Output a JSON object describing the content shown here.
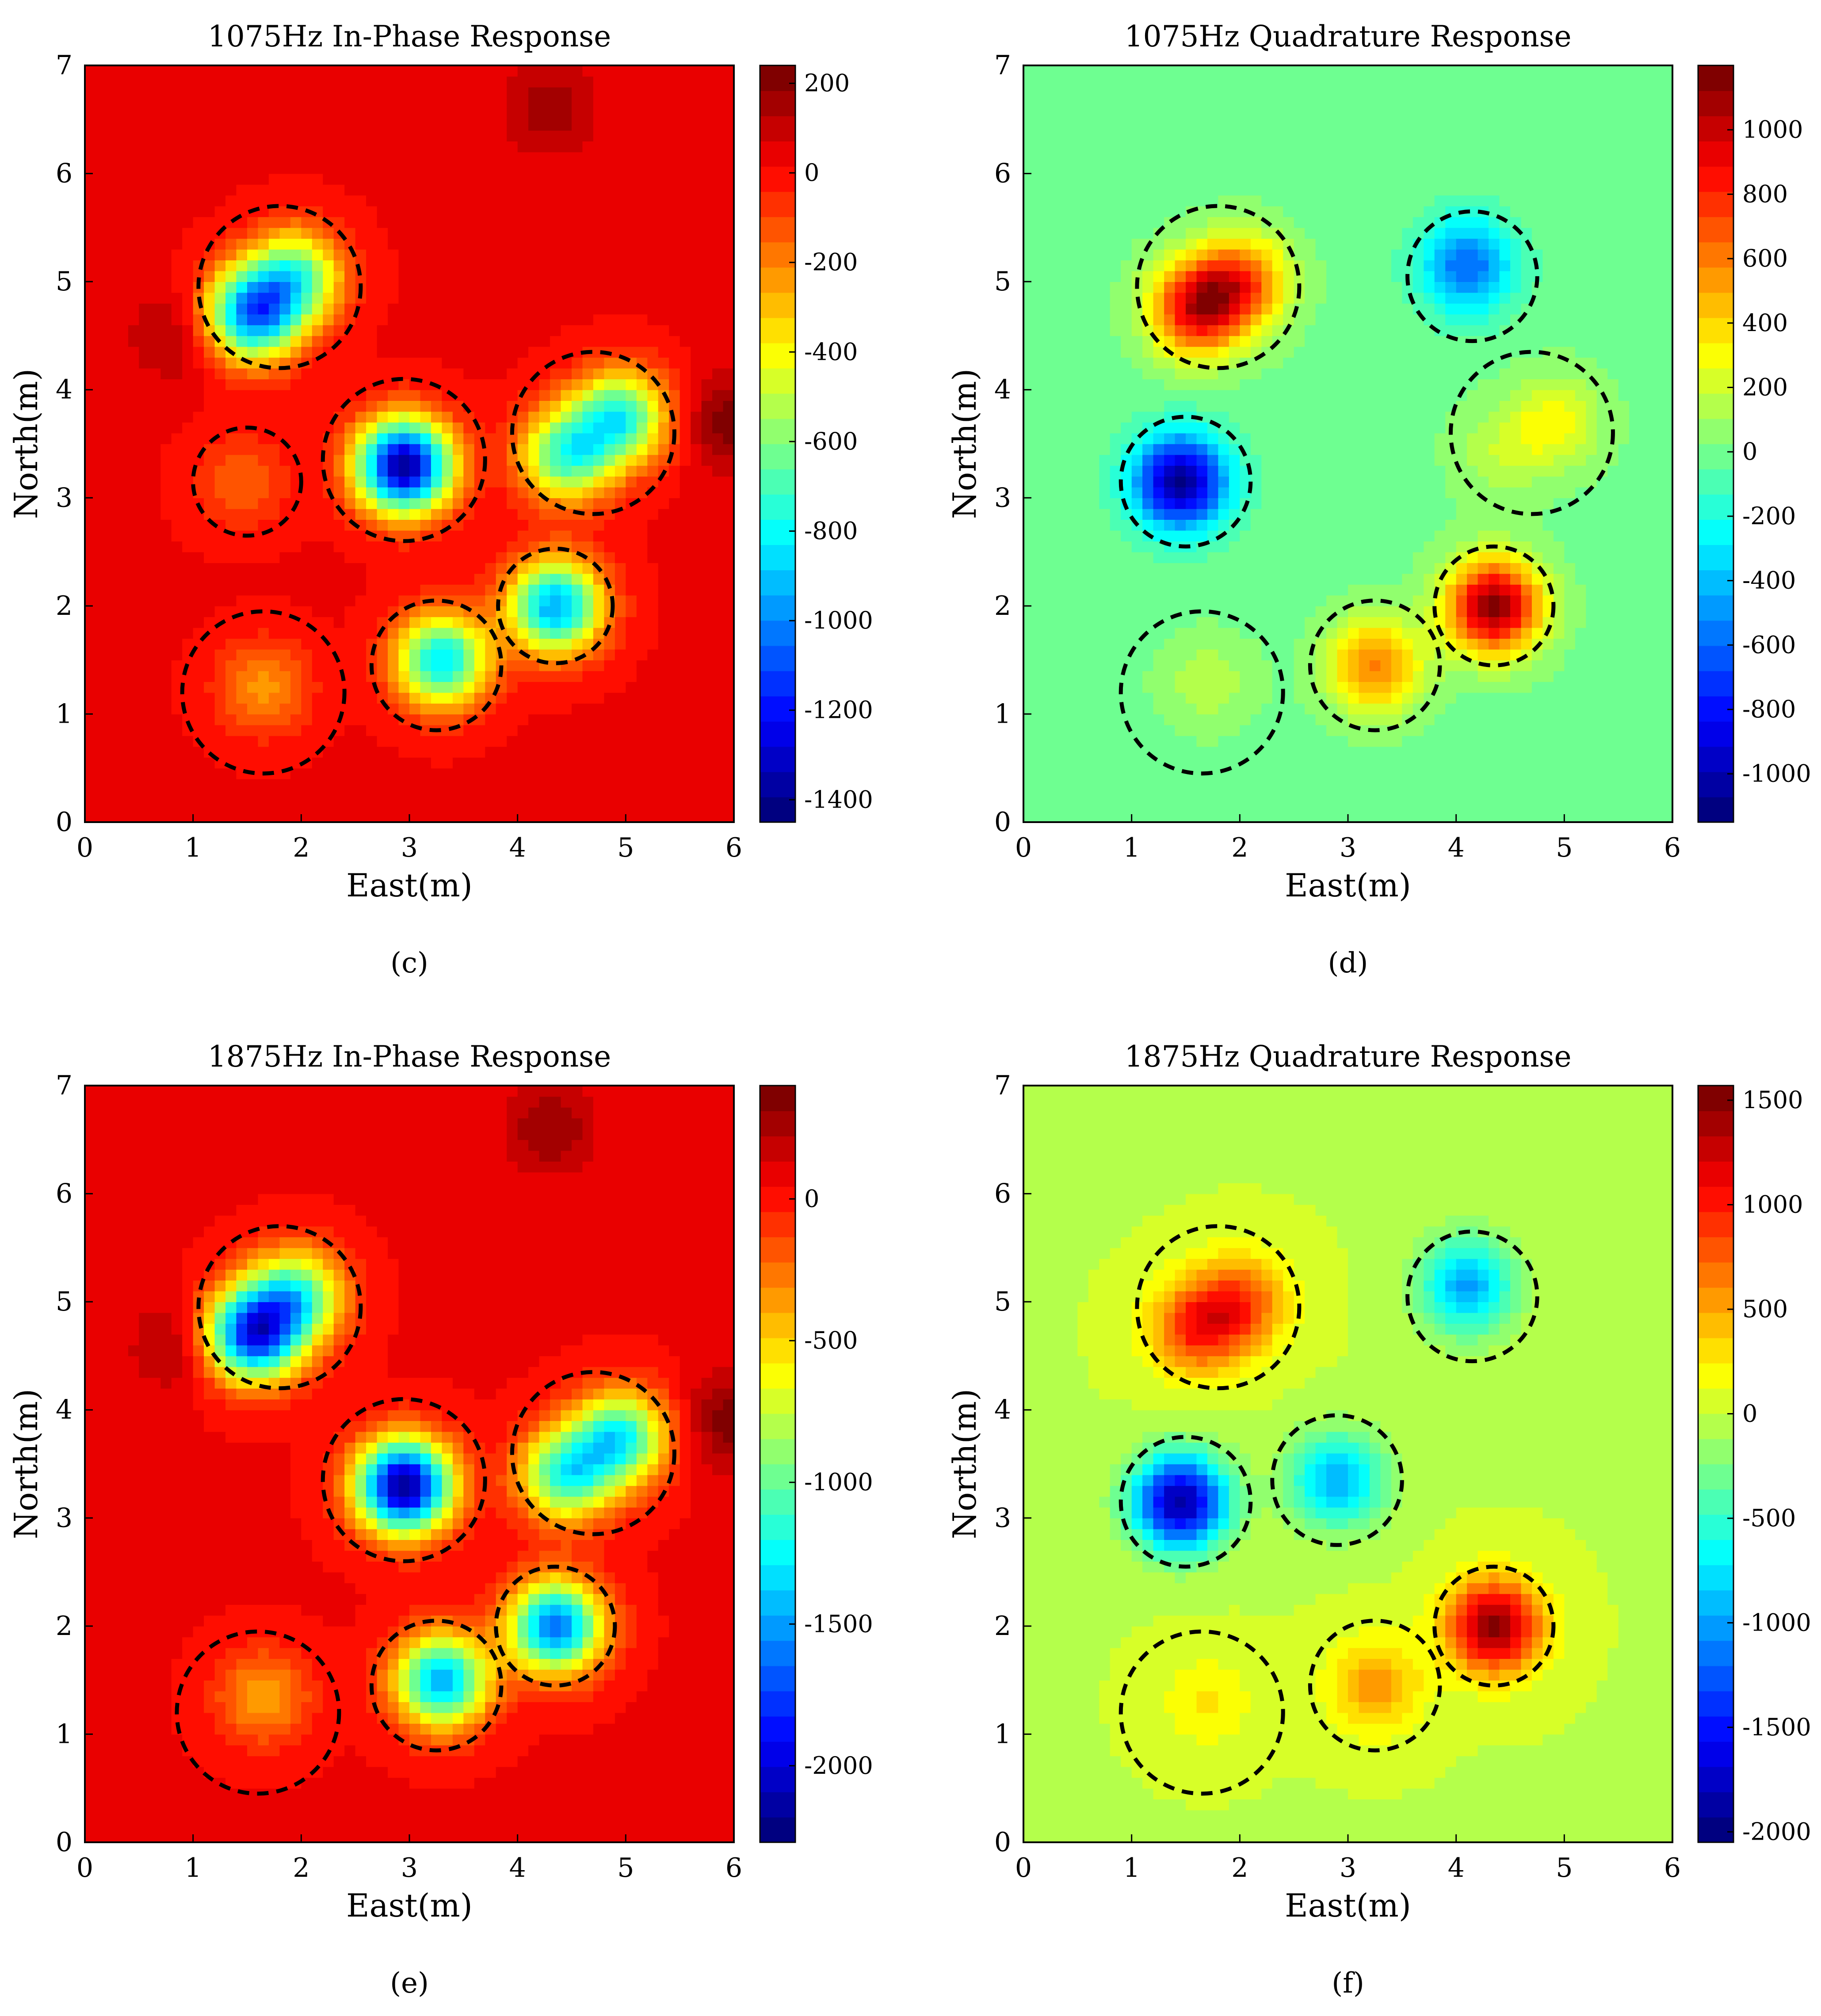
{
  "chart_data": [
    {
      "type": "heatmap",
      "title": "1075Hz In-Phase Response",
      "xlabel": "East(m)",
      "ylabel": "North(m)",
      "xlim": [
        0,
        6
      ],
      "ylim": [
        0,
        7
      ],
      "xticks": [
        "0",
        "1",
        "2",
        "3",
        "4",
        "5",
        "6"
      ],
      "yticks": [
        "0",
        "1",
        "2",
        "3",
        "4",
        "5",
        "6",
        "7"
      ],
      "colormap": "jet",
      "colorbar_range": [
        -1450,
        240
      ],
      "colorbar_ticks": [
        200,
        0,
        -200,
        -400,
        -600,
        -800,
        -1000,
        -1200,
        -1400
      ],
      "colorbar_tick_labels": [
        "200",
        "0",
        "-200",
        "-400",
        "-600",
        "-800",
        "-1000",
        "-1200",
        "-1400"
      ],
      "background_value": 20,
      "anomalies": [
        {
          "x": 1.55,
          "y": 4.7,
          "value": -1000
        },
        {
          "x": 1.95,
          "y": 5.05,
          "value": -650
        },
        {
          "x": 2.95,
          "y": 3.3,
          "value": -1400
        },
        {
          "x": 1.45,
          "y": 3.15,
          "value": -150
        },
        {
          "x": 4.45,
          "y": 3.4,
          "value": -700
        },
        {
          "x": 4.95,
          "y": 3.75,
          "value": -750
        },
        {
          "x": 4.35,
          "y": 2.0,
          "value": -950
        },
        {
          "x": 3.3,
          "y": 1.5,
          "value": -850
        },
        {
          "x": 1.65,
          "y": 1.25,
          "value": -230
        },
        {
          "x": 6.0,
          "y": 3.7,
          "value": 230
        },
        {
          "x": 4.3,
          "y": 6.6,
          "value": 170
        },
        {
          "x": 0.85,
          "y": 4.5,
          "value": 150
        }
      ],
      "target_circles": [
        {
          "x": 1.8,
          "y": 4.95,
          "r": 0.75
        },
        {
          "x": 1.5,
          "y": 3.15,
          "r": 0.5
        },
        {
          "x": 2.95,
          "y": 3.35,
          "r": 0.75
        },
        {
          "x": 4.7,
          "y": 3.6,
          "r": 0.75
        },
        {
          "x": 4.35,
          "y": 2.0,
          "r": 0.53
        },
        {
          "x": 3.25,
          "y": 1.45,
          "r": 0.6
        },
        {
          "x": 1.65,
          "y": 1.2,
          "r": 0.75
        }
      ],
      "panel_label": "(c)"
    },
    {
      "type": "heatmap",
      "title": "1075Hz Quadrature Response",
      "xlabel": "East(m)",
      "ylabel": "North(m)",
      "xlim": [
        0,
        6
      ],
      "ylim": [
        0,
        7
      ],
      "xticks": [
        "0",
        "1",
        "2",
        "3",
        "4",
        "5",
        "6"
      ],
      "yticks": [
        "0",
        "1",
        "2",
        "3",
        "4",
        "5",
        "6",
        "7"
      ],
      "colormap": "jet",
      "colorbar_range": [
        -1150,
        1200
      ],
      "colorbar_ticks": [
        1000,
        800,
        600,
        400,
        200,
        0,
        -200,
        -400,
        -600,
        -800,
        -1000
      ],
      "colorbar_tick_labels": [
        "1000",
        "800",
        "600",
        "400",
        "200",
        "0",
        "-200",
        "-400",
        "-600",
        "-800",
        "-1000"
      ],
      "background_value": 0,
      "anomalies": [
        {
          "x": 1.6,
          "y": 4.75,
          "value": 900
        },
        {
          "x": 2.0,
          "y": 5.0,
          "value": 700
        },
        {
          "x": 4.1,
          "y": 5.15,
          "value": -600
        },
        {
          "x": 1.45,
          "y": 3.15,
          "value": -1100
        },
        {
          "x": 4.9,
          "y": 3.7,
          "value": 300
        },
        {
          "x": 4.4,
          "y": 3.4,
          "value": 150
        },
        {
          "x": 4.35,
          "y": 2.0,
          "value": 1150
        },
        {
          "x": 3.25,
          "y": 1.45,
          "value": 600
        },
        {
          "x": 1.7,
          "y": 1.3,
          "value": 150
        }
      ],
      "target_circles": [
        {
          "x": 1.8,
          "y": 4.95,
          "r": 0.75
        },
        {
          "x": 4.15,
          "y": 5.05,
          "r": 0.6
        },
        {
          "x": 1.5,
          "y": 3.15,
          "r": 0.6
        },
        {
          "x": 4.7,
          "y": 3.6,
          "r": 0.75
        },
        {
          "x": 4.35,
          "y": 2.0,
          "r": 0.55
        },
        {
          "x": 3.25,
          "y": 1.45,
          "r": 0.6
        },
        {
          "x": 1.65,
          "y": 1.2,
          "r": 0.75
        }
      ],
      "panel_label": "(d)"
    },
    {
      "type": "heatmap",
      "title": "1875Hz In-Phase Response",
      "xlabel": "East(m)",
      "ylabel": "North(m)",
      "xlim": [
        0,
        6
      ],
      "ylim": [
        0,
        7
      ],
      "xticks": [
        "0",
        "1",
        "2",
        "3",
        "4",
        "5",
        "6"
      ],
      "yticks": [
        "0",
        "1",
        "2",
        "3",
        "4",
        "5",
        "6",
        "7"
      ],
      "colormap": "jet",
      "colorbar_range": [
        -2270,
        400
      ],
      "colorbar_ticks": [
        0,
        -500,
        -1000,
        -1500,
        -2000
      ],
      "colorbar_tick_labels": [
        "0",
        "-500",
        "-1000",
        "-1500",
        "-2000"
      ],
      "background_value": 50,
      "anomalies": [
        {
          "x": 1.55,
          "y": 4.7,
          "value": -1800
        },
        {
          "x": 1.95,
          "y": 5.05,
          "value": -1100
        },
        {
          "x": 2.95,
          "y": 3.3,
          "value": -2200
        },
        {
          "x": 4.45,
          "y": 3.4,
          "value": -1150
        },
        {
          "x": 4.95,
          "y": 3.75,
          "value": -1200
        },
        {
          "x": 4.35,
          "y": 2.0,
          "value": -1600
        },
        {
          "x": 3.3,
          "y": 1.5,
          "value": -1450
        },
        {
          "x": 1.65,
          "y": 1.35,
          "value": -400
        },
        {
          "x": 6.0,
          "y": 3.9,
          "value": 380
        },
        {
          "x": 4.3,
          "y": 6.6,
          "value": 300
        },
        {
          "x": 0.85,
          "y": 4.6,
          "value": 260
        }
      ],
      "target_circles": [
        {
          "x": 1.8,
          "y": 4.95,
          "r": 0.75
        },
        {
          "x": 2.95,
          "y": 3.35,
          "r": 0.75
        },
        {
          "x": 4.7,
          "y": 3.6,
          "r": 0.75
        },
        {
          "x": 4.35,
          "y": 2.0,
          "r": 0.55
        },
        {
          "x": 3.25,
          "y": 1.45,
          "r": 0.6
        },
        {
          "x": 1.6,
          "y": 1.2,
          "r": 0.75
        }
      ],
      "panel_label": "(e)"
    },
    {
      "type": "heatmap",
      "title": "1875Hz Quadrature Response",
      "xlabel": "East(m)",
      "ylabel": "North(m)",
      "xlim": [
        0,
        6
      ],
      "ylim": [
        0,
        7
      ],
      "xticks": [
        "0",
        "1",
        "2",
        "3",
        "4",
        "5",
        "6"
      ],
      "yticks": [
        "0",
        "1",
        "2",
        "3",
        "4",
        "5",
        "6",
        "7"
      ],
      "colormap": "jet",
      "colorbar_range": [
        -2050,
        1570
      ],
      "colorbar_ticks": [
        1500,
        1000,
        500,
        0,
        -500,
        -1000,
        -1500,
        -2000
      ],
      "colorbar_tick_labels": [
        "1500",
        "1000",
        "500",
        "0",
        "-500",
        "-1000",
        "-1500",
        "-2000"
      ],
      "background_value": 0,
      "anomalies": [
        {
          "x": 1.6,
          "y": 4.75,
          "value": 900
        },
        {
          "x": 2.0,
          "y": 5.0,
          "value": 800
        },
        {
          "x": 4.1,
          "y": 5.15,
          "value": -1000
        },
        {
          "x": 1.45,
          "y": 3.15,
          "value": -1900
        },
        {
          "x": 2.9,
          "y": 3.35,
          "value": -950
        },
        {
          "x": 4.35,
          "y": 2.0,
          "value": 1500
        },
        {
          "x": 3.25,
          "y": 1.45,
          "value": 550
        },
        {
          "x": 1.7,
          "y": 1.3,
          "value": 250
        }
      ],
      "target_circles": [
        {
          "x": 1.8,
          "y": 4.95,
          "r": 0.75
        },
        {
          "x": 4.15,
          "y": 5.05,
          "r": 0.6
        },
        {
          "x": 1.5,
          "y": 3.15,
          "r": 0.6
        },
        {
          "x": 2.9,
          "y": 3.35,
          "r": 0.6
        },
        {
          "x": 4.35,
          "y": 2.0,
          "r": 0.55
        },
        {
          "x": 3.25,
          "y": 1.45,
          "r": 0.6
        },
        {
          "x": 1.65,
          "y": 1.2,
          "r": 0.75
        }
      ],
      "panel_label": "(f)"
    }
  ]
}
